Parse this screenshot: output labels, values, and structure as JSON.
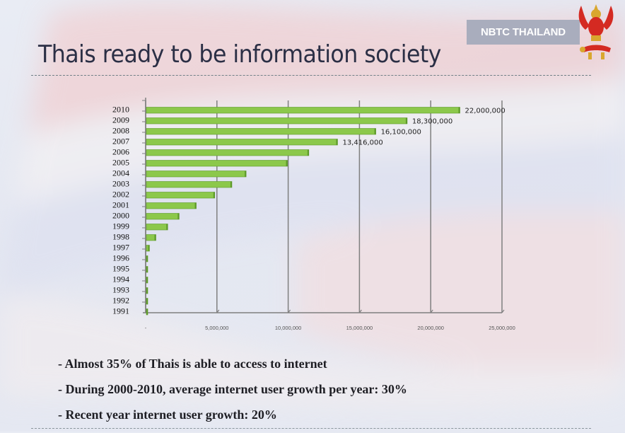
{
  "header": {
    "brand_label": "NBTC THAILAND",
    "title": "Thais ready to be information society",
    "emblem_icon": "garuda-emblem-icon"
  },
  "bullets": [
    "- Almost 35% of Thais is able to access to internet",
    "- During 2000-2010, average internet user growth per year: 30%",
    "- Recent year internet user growth: 20%"
  ],
  "colors": {
    "bar_fill": "#8cc84b",
    "bar_edge": "#5e9a2a",
    "axis": "#7f7f7f",
    "brand_box": "#a9adbd"
  },
  "chart_data": {
    "type": "bar",
    "orientation": "horizontal",
    "title": "",
    "xlabel": "",
    "ylabel": "",
    "categories": [
      "2010",
      "2009",
      "2008",
      "2007",
      "2006",
      "2005",
      "2004",
      "2003",
      "2002",
      "2001",
      "2000",
      "1999",
      "1998",
      "1997",
      "1996",
      "1995",
      "1994",
      "1993",
      "1992",
      "1991"
    ],
    "values": [
      22000000,
      18300000,
      16100000,
      13416000,
      11400000,
      9900000,
      7000000,
      6000000,
      4800000,
      3500000,
      2300000,
      1500000,
      670000,
      220000,
      70000,
      45000,
      30000,
      20000,
      15000,
      10000
    ],
    "data_labels": {
      "2010": "22,000,000",
      "2009": "18,300,000",
      "2008": "16,100,000",
      "2007": "13,416,000"
    },
    "xlim": [
      0,
      25000000
    ],
    "x_ticks": [
      0,
      5000000,
      10000000,
      15000000,
      20000000,
      25000000
    ],
    "x_tick_labels": [
      "-",
      "5,000,000",
      "10,000,000",
      "15,000,000",
      "20,000,000",
      "25,000,000"
    ],
    "grid": "vertical",
    "legend": "none"
  }
}
